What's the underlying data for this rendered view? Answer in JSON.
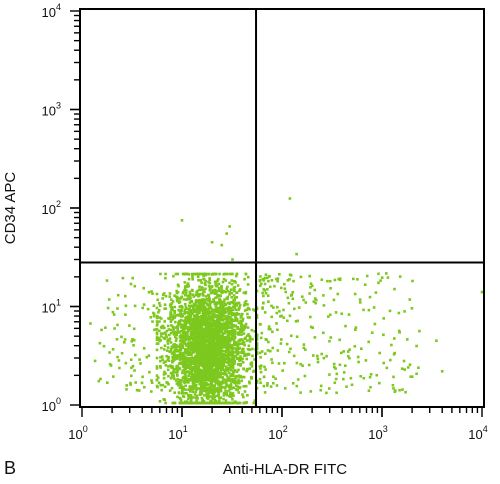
{
  "panel_label": "B",
  "chart_data": {
    "type": "scatter",
    "title": "",
    "xlabel": "Anti-HLA-DR FITC",
    "ylabel": "CD34 APC",
    "x_scale": "log",
    "y_scale": "log",
    "xlim": [
      1,
      10000
    ],
    "ylim": [
      1,
      10000
    ],
    "x_ticks": [
      {
        "value": 1,
        "base": "10",
        "exp": "0"
      },
      {
        "value": 10,
        "base": "10",
        "exp": "1"
      },
      {
        "value": 100,
        "base": "10",
        "exp": "2"
      },
      {
        "value": 1000,
        "base": "10",
        "exp": "3"
      },
      {
        "value": 10000,
        "base": "10",
        "exp": "4"
      }
    ],
    "y_ticks": [
      {
        "value": 1,
        "base": "10",
        "exp": "0"
      },
      {
        "value": 10,
        "base": "10",
        "exp": "1"
      },
      {
        "value": 100,
        "base": "10",
        "exp": "2"
      },
      {
        "value": 1000,
        "base": "10",
        "exp": "3"
      },
      {
        "value": 10000,
        "base": "10",
        "exp": "4"
      }
    ],
    "quadrant_gate": {
      "x": 55,
      "y": 28
    },
    "grid": false,
    "point_color": "#7dc81e",
    "events": {
      "main_cluster": {
        "x_center": 18,
        "x_spread_decades": 0.2,
        "y_center": 4,
        "y_spread_decades": 0.32,
        "count": 3200
      },
      "right_scatter": {
        "x_range": [
          60,
          2500
        ],
        "y_range": [
          1.3,
          22
        ],
        "count": 280
      },
      "left_scatter": {
        "x_range": [
          1.2,
          8
        ],
        "y_range": [
          1.3,
          20
        ],
        "count": 110
      },
      "outliers": [
        {
          "x": 10,
          "y": 75
        },
        {
          "x": 30,
          "y": 65
        },
        {
          "x": 28,
          "y": 55
        },
        {
          "x": 20,
          "y": 45
        },
        {
          "x": 25,
          "y": 42
        },
        {
          "x": 32,
          "y": 30
        },
        {
          "x": 120,
          "y": 125
        },
        {
          "x": 140,
          "y": 34
        },
        {
          "x": 10000,
          "y": 14
        },
        {
          "x": 4000,
          "y": 2.2
        },
        {
          "x": 3500,
          "y": 4.5
        }
      ]
    }
  }
}
